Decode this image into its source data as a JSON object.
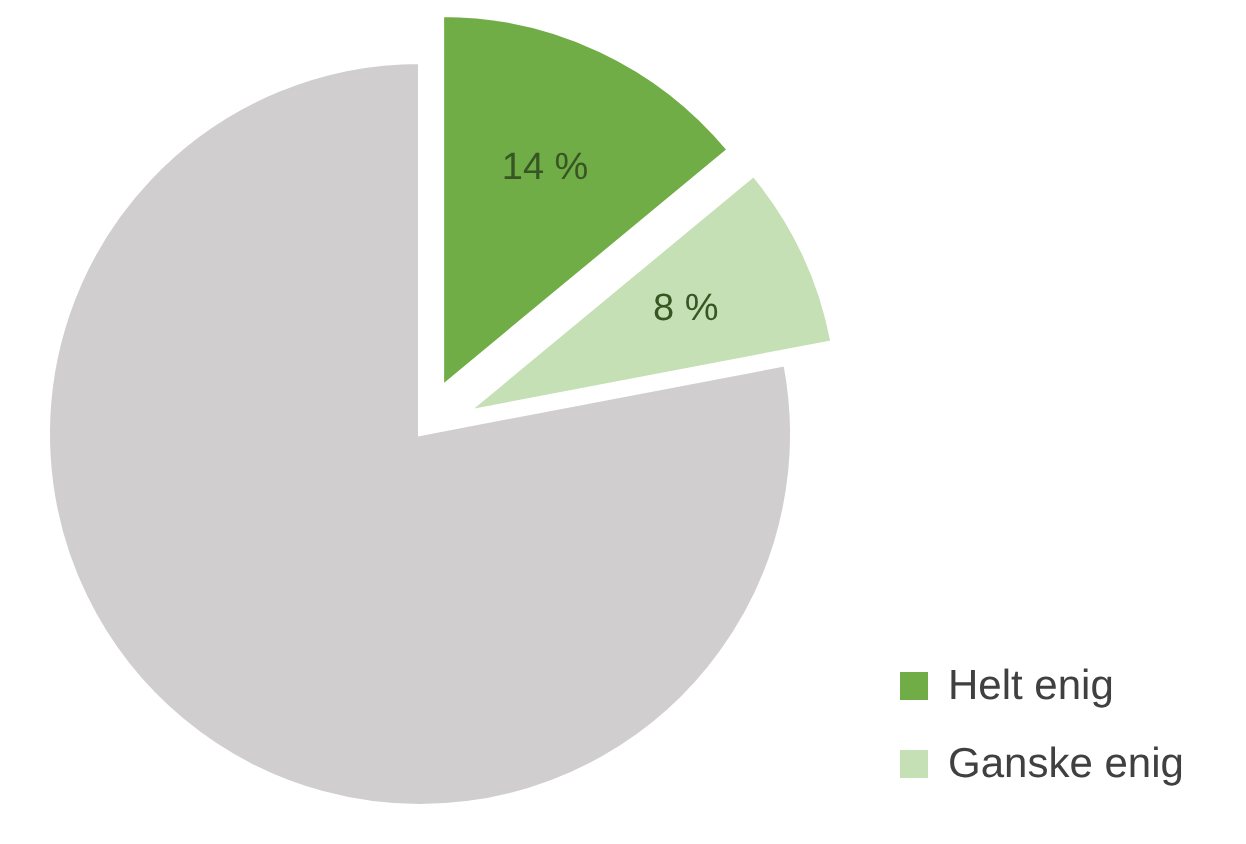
{
  "chart_data": {
    "type": "pie",
    "categories": [
      "Helt enig",
      "Ganske enig",
      null
    ],
    "values": [
      14,
      8,
      78
    ],
    "colors": [
      "#70ad47",
      "#c5e0b4",
      "#d0cece"
    ],
    "value_labels": [
      "14 %",
      "8 %",
      null
    ],
    "legend": "bottom right"
  }
}
